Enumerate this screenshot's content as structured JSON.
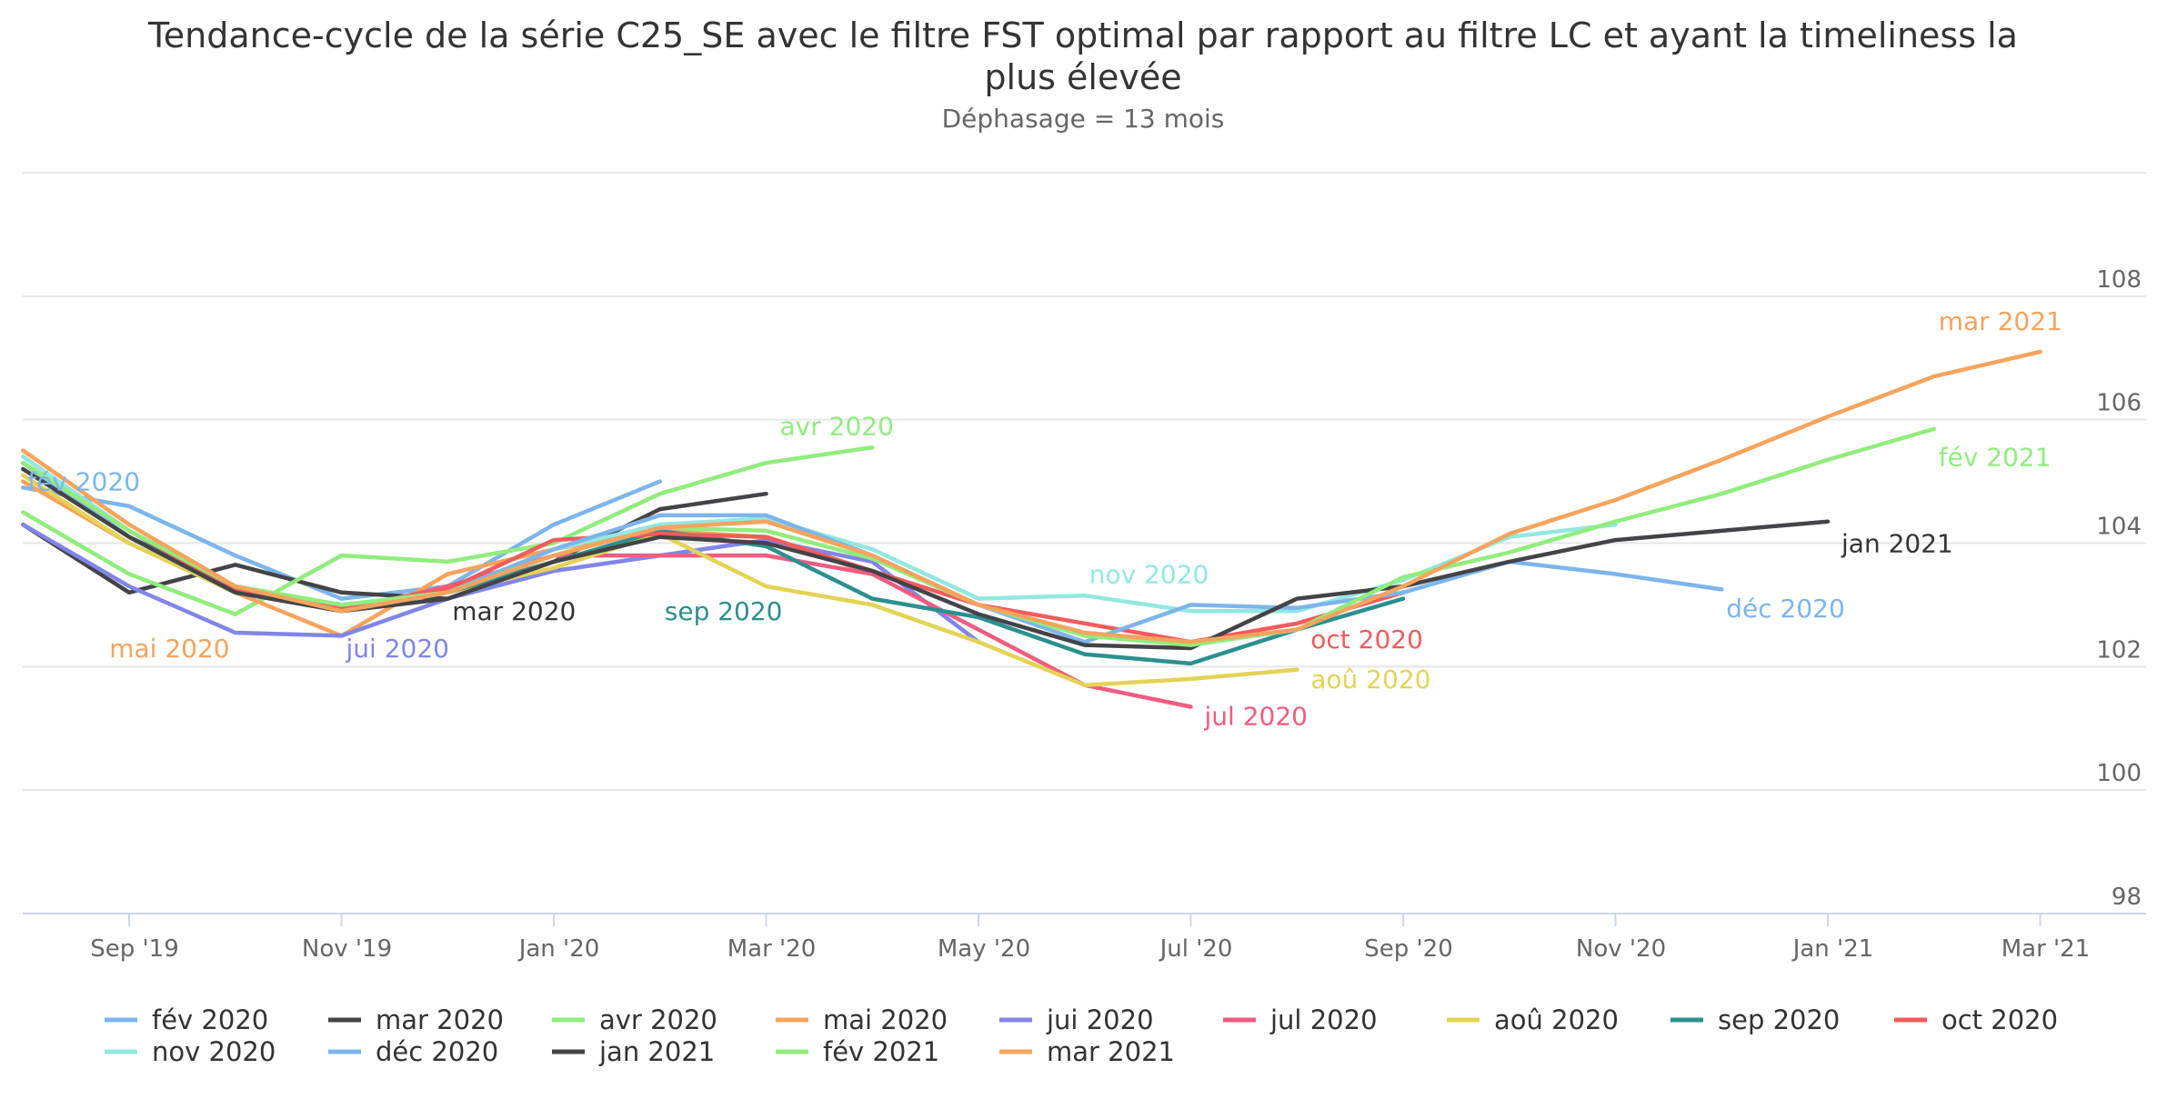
{
  "chart_data": {
    "type": "line",
    "title": "Tendance-cycle de la série C25_SE avec le filtre FST optimal par rapport au filtre LC et ayant la timeliness la plus élevée",
    "subtitle": "Déphasage = 13 mois",
    "xlabel": "",
    "ylabel": "",
    "x_axis": {
      "ticks": [
        "2019-09",
        "2019-11",
        "2020-01",
        "2020-03",
        "2020-05",
        "2020-07",
        "2020-09",
        "2020-11",
        "2021-01",
        "2021-03"
      ],
      "tick_labels": [
        "Sep '19",
        "Nov '19",
        "Jan '20",
        "Mar '20",
        "May '20",
        "Jul '20",
        "Sep '20",
        "Nov '20",
        "Jan '21",
        "Mar '21"
      ],
      "range": [
        "2019-08",
        "2021-03"
      ]
    },
    "y_axis": {
      "ticks": [
        98,
        100,
        102,
        104,
        106,
        108
      ],
      "range": [
        98,
        110
      ],
      "position": "right"
    },
    "grid": true,
    "legend_placement": "bottom",
    "series": [
      {
        "name": "fév 2020",
        "label": "fév 2020",
        "color": "#7cb5ec",
        "start": "2019-08",
        "values": [
          104.9,
          104.6,
          103.8,
          103.1,
          103.3,
          104.3,
          105.0
        ]
      },
      {
        "name": "mar 2020",
        "label": "mar 2020",
        "color": "#434348",
        "start": "2019-08",
        "values": [
          104.3,
          103.2,
          103.65,
          103.2,
          103.1,
          103.7,
          104.55,
          104.8
        ]
      },
      {
        "name": "avr 2020",
        "label": "avr 2020",
        "color": "#90ed7d",
        "start": "2019-08",
        "values": [
          104.5,
          103.5,
          102.85,
          103.8,
          103.7,
          104.0,
          104.8,
          105.3,
          105.55
        ]
      },
      {
        "name": "mai 2020",
        "label": "mai 2020",
        "color": "#f7a35c",
        "start": "2019-08",
        "values": [
          105.0,
          104.0,
          103.2,
          102.5,
          103.5,
          103.9,
          104.2,
          104.1,
          103.5
        ]
      },
      {
        "name": "jui 2020",
        "label": "jui 2020",
        "color": "#8085e9",
        "start": "2019-08",
        "values": [
          104.3,
          103.3,
          102.55,
          102.5,
          103.1,
          103.55,
          103.8,
          104.05,
          103.7,
          102.4
        ]
      },
      {
        "name": "jul 2020",
        "label": "jul 2020",
        "color": "#f15c80",
        "start": "2019-08",
        "values": [
          105.3,
          104.1,
          103.2,
          102.9,
          103.3,
          103.8,
          103.8,
          103.8,
          103.5,
          102.6,
          101.7,
          101.35
        ]
      },
      {
        "name": "aoû 2020",
        "label": "aoû 2020",
        "color": "#e4d354",
        "start": "2019-08",
        "values": [
          105.1,
          104.0,
          103.2,
          102.9,
          103.2,
          103.6,
          104.15,
          103.3,
          103.0,
          102.4,
          101.7,
          101.8,
          101.95
        ]
      },
      {
        "name": "sep 2020",
        "label": "sep 2020",
        "color": "#2b908f",
        "start": "2019-08",
        "values": [
          105.3,
          104.1,
          103.3,
          102.9,
          103.2,
          103.7,
          104.2,
          103.95,
          103.1,
          102.8,
          102.2,
          102.05,
          102.6,
          103.1
        ]
      },
      {
        "name": "oct 2020",
        "label": "oct 2020",
        "color": "#f45b5b",
        "start": "2019-08",
        "values": [
          105.4,
          104.2,
          103.25,
          102.95,
          103.25,
          104.05,
          104.15,
          104.1,
          103.55,
          103.0,
          102.7,
          102.4,
          102.7,
          103.2
        ]
      },
      {
        "name": "nov 2020",
        "label": "nov 2020",
        "color": "#91e8e1",
        "start": "2019-08",
        "values": [
          105.4,
          104.2,
          103.3,
          103.0,
          103.2,
          103.9,
          104.3,
          104.4,
          103.9,
          103.1,
          103.15,
          102.9,
          102.9,
          103.4,
          104.1,
          104.3
        ]
      },
      {
        "name": "déc 2020",
        "label": "déc 2020",
        "color": "#7cb5ec",
        "start": "2019-08",
        "values": [
          105.3,
          104.1,
          103.2,
          102.9,
          103.2,
          103.9,
          104.45,
          104.45,
          103.8,
          103.0,
          102.4,
          103.0,
          102.95,
          103.2,
          103.7,
          103.5,
          103.25
        ]
      },
      {
        "name": "jan 2021",
        "label": "jan 2021",
        "color": "#434348",
        "start": "2019-08",
        "values": [
          105.2,
          104.1,
          103.2,
          102.9,
          103.1,
          103.7,
          104.1,
          104.0,
          103.55,
          102.85,
          102.35,
          102.3,
          103.1,
          103.3,
          103.7,
          104.05,
          104.2,
          104.35
        ]
      },
      {
        "name": "fév 2021",
        "label": "fév 2021",
        "color": "#90ed7d",
        "start": "2019-08",
        "values": [
          105.3,
          104.2,
          103.3,
          103.0,
          103.2,
          103.8,
          104.25,
          104.2,
          103.75,
          103.0,
          102.5,
          102.35,
          102.6,
          103.45,
          103.85,
          104.35,
          104.8,
          105.35,
          105.85
        ]
      },
      {
        "name": "mar 2021",
        "label": "mar 2021",
        "color": "#f7a35c",
        "start": "2019-08",
        "values": [
          105.5,
          104.3,
          103.3,
          102.9,
          103.2,
          103.8,
          104.25,
          104.35,
          103.8,
          103.0,
          102.55,
          102.4,
          102.6,
          103.3,
          104.15,
          104.7,
          105.35,
          106.05,
          106.7,
          107.1
        ]
      }
    ],
    "series_labels_on_chart": [
      {
        "text": "fév 2020",
        "color": "#7cb5ec",
        "at": [
          "2019-08",
          105.0
        ]
      },
      {
        "text": "mar 2020",
        "color": "#333333",
        "at": [
          "2019-12",
          102.9
        ]
      },
      {
        "text": "avr 2020",
        "color": "#90ed7d",
        "at": [
          "2020-03",
          105.9
        ]
      },
      {
        "text": "mai 2020",
        "color": "#f7a35c",
        "at": [
          "2019-08",
          102.3
        ]
      },
      {
        "text": "jui 2020",
        "color": "#8085e9",
        "at": [
          "2019-11",
          102.3
        ]
      },
      {
        "text": "jul 2020",
        "color": "#f15c80",
        "at": [
          "2020-07",
          101.2
        ]
      },
      {
        "text": "aoû 2020",
        "color": "#e4d354",
        "at": [
          "2020-08",
          101.8
        ]
      },
      {
        "text": "sep 2020",
        "color": "#2b908f",
        "at": [
          "2020-02",
          102.9
        ]
      },
      {
        "text": "oct 2020",
        "color": "#f45b5b",
        "at": [
          "2020-08",
          102.45
        ]
      },
      {
        "text": "nov 2020",
        "color": "#91e8e1",
        "at": [
          "2020-06",
          103.5
        ]
      },
      {
        "text": "déc 2020",
        "color": "#7cb5ec",
        "at": [
          "2020-12",
          102.95
        ]
      },
      {
        "text": "jan 2021",
        "color": "#333333",
        "at": [
          "2021-01",
          104.0
        ]
      },
      {
        "text": "fév 2021",
        "color": "#90ed7d",
        "at": [
          "2021-02",
          105.4
        ]
      },
      {
        "text": "mar 2021",
        "color": "#f7a35c",
        "at": [
          "2021-02",
          107.6
        ]
      }
    ]
  }
}
